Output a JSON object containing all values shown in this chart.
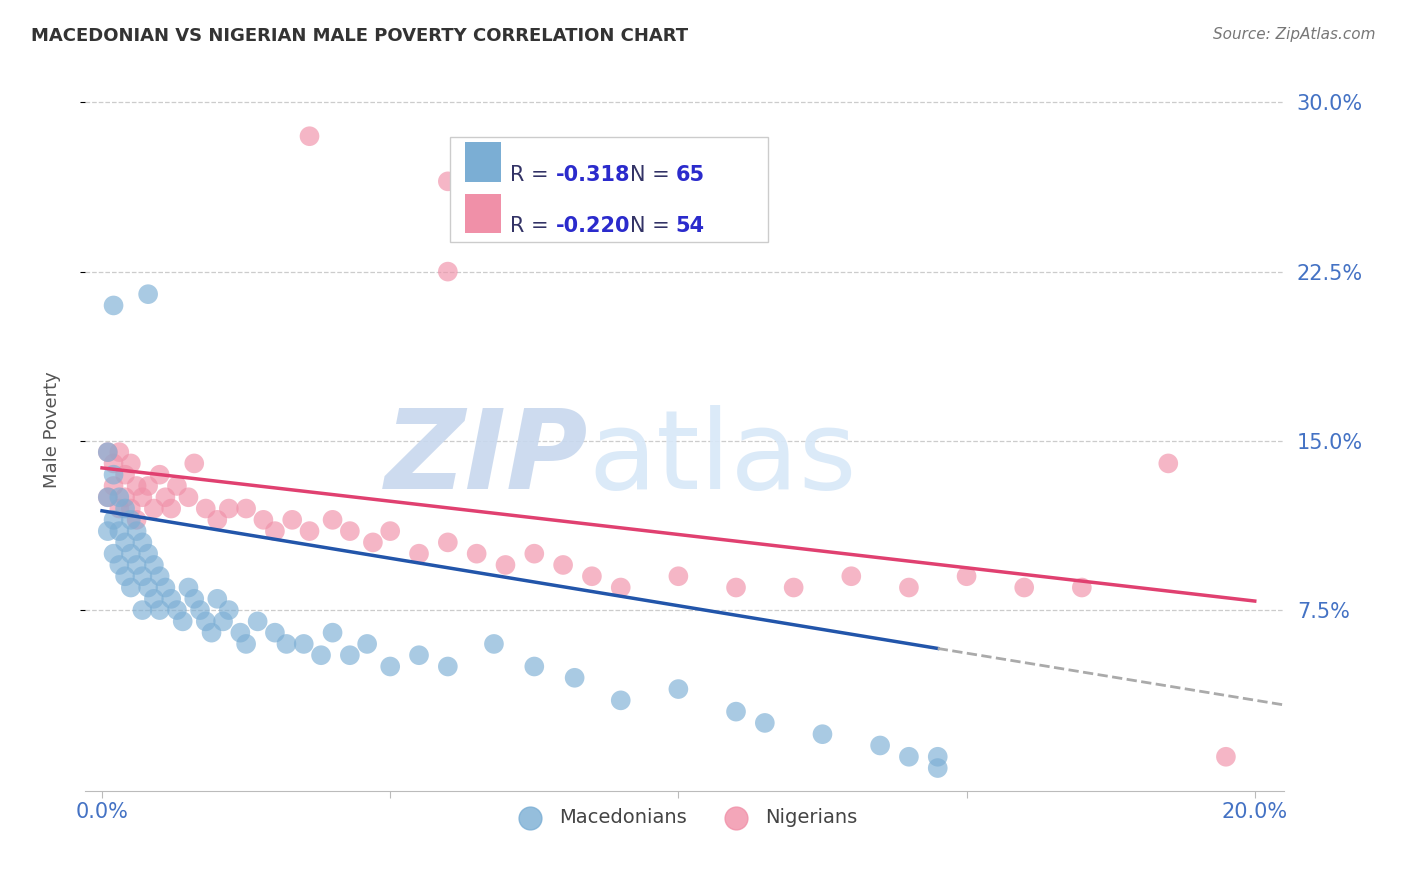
{
  "title": "MACEDONIAN VS NIGERIAN MALE POVERTY CORRELATION CHART",
  "source": "Source: ZipAtlas.com",
  "tick_color": "#4472C4",
  "ylabel": "Male Poverty",
  "macedonian_color": "#7BAED4",
  "nigerian_color": "#F090A8",
  "macedonian_line_color": "#2255AA",
  "nigerian_line_color": "#E04070",
  "dashed_line_color": "#AAAAAA",
  "background_color": "#FFFFFF",
  "legend_text_color": "#2B2BCC",
  "watermark_zip_color": "#C8D8EE",
  "watermark_atlas_color": "#D8E8F8",
  "xlim": [
    0.0,
    0.205
  ],
  "ylim": [
    0.0,
    0.315
  ],
  "y_ticks": [
    0.075,
    0.15,
    0.225,
    0.3
  ],
  "y_tick_labels": [
    "7.5%",
    "15.0%",
    "22.5%",
    "30.0%"
  ],
  "mac_line_x": [
    0.0,
    0.145
  ],
  "mac_line_y_start": 0.119,
  "mac_line_y_end": 0.058,
  "nig_line_x": [
    0.0,
    0.2
  ],
  "nig_line_y_start": 0.138,
  "nig_line_y_end": 0.079,
  "dash_line_x": [
    0.145,
    0.205
  ],
  "dash_line_y_start": 0.058,
  "dash_line_y_end": 0.033,
  "mac_scatter_x": [
    0.001,
    0.001,
    0.001,
    0.002,
    0.002,
    0.002,
    0.003,
    0.003,
    0.003,
    0.004,
    0.004,
    0.004,
    0.005,
    0.005,
    0.005,
    0.006,
    0.006,
    0.007,
    0.007,
    0.007,
    0.008,
    0.008,
    0.009,
    0.009,
    0.01,
    0.01,
    0.011,
    0.012,
    0.013,
    0.014,
    0.015,
    0.016,
    0.017,
    0.018,
    0.019,
    0.02,
    0.021,
    0.022,
    0.024,
    0.025,
    0.027,
    0.03,
    0.032,
    0.035,
    0.038,
    0.04,
    0.043,
    0.046,
    0.05,
    0.055,
    0.06,
    0.068,
    0.075,
    0.082,
    0.09,
    0.1,
    0.11,
    0.115,
    0.125,
    0.135,
    0.14,
    0.145,
    0.145,
    0.002,
    0.008
  ],
  "mac_scatter_y": [
    0.145,
    0.125,
    0.11,
    0.135,
    0.115,
    0.1,
    0.125,
    0.11,
    0.095,
    0.12,
    0.105,
    0.09,
    0.115,
    0.1,
    0.085,
    0.11,
    0.095,
    0.105,
    0.09,
    0.075,
    0.1,
    0.085,
    0.095,
    0.08,
    0.09,
    0.075,
    0.085,
    0.08,
    0.075,
    0.07,
    0.085,
    0.08,
    0.075,
    0.07,
    0.065,
    0.08,
    0.07,
    0.075,
    0.065,
    0.06,
    0.07,
    0.065,
    0.06,
    0.06,
    0.055,
    0.065,
    0.055,
    0.06,
    0.05,
    0.055,
    0.05,
    0.06,
    0.05,
    0.045,
    0.035,
    0.04,
    0.03,
    0.025,
    0.02,
    0.015,
    0.01,
    0.005,
    0.01,
    0.21,
    0.215
  ],
  "nig_scatter_x": [
    0.001,
    0.001,
    0.002,
    0.002,
    0.003,
    0.003,
    0.004,
    0.004,
    0.005,
    0.005,
    0.006,
    0.006,
    0.007,
    0.008,
    0.009,
    0.01,
    0.011,
    0.012,
    0.013,
    0.015,
    0.016,
    0.018,
    0.02,
    0.022,
    0.025,
    0.028,
    0.03,
    0.033,
    0.036,
    0.04,
    0.043,
    0.047,
    0.05,
    0.055,
    0.06,
    0.065,
    0.07,
    0.075,
    0.08,
    0.085,
    0.09,
    0.1,
    0.11,
    0.12,
    0.13,
    0.14,
    0.15,
    0.16,
    0.17,
    0.185,
    0.036,
    0.06,
    0.06,
    0.195
  ],
  "nig_scatter_y": [
    0.145,
    0.125,
    0.14,
    0.13,
    0.145,
    0.12,
    0.135,
    0.125,
    0.14,
    0.12,
    0.13,
    0.115,
    0.125,
    0.13,
    0.12,
    0.135,
    0.125,
    0.12,
    0.13,
    0.125,
    0.14,
    0.12,
    0.115,
    0.12,
    0.12,
    0.115,
    0.11,
    0.115,
    0.11,
    0.115,
    0.11,
    0.105,
    0.11,
    0.1,
    0.105,
    0.1,
    0.095,
    0.1,
    0.095,
    0.09,
    0.085,
    0.09,
    0.085,
    0.085,
    0.09,
    0.085,
    0.09,
    0.085,
    0.085,
    0.14,
    0.285,
    0.265,
    0.225,
    0.01
  ]
}
